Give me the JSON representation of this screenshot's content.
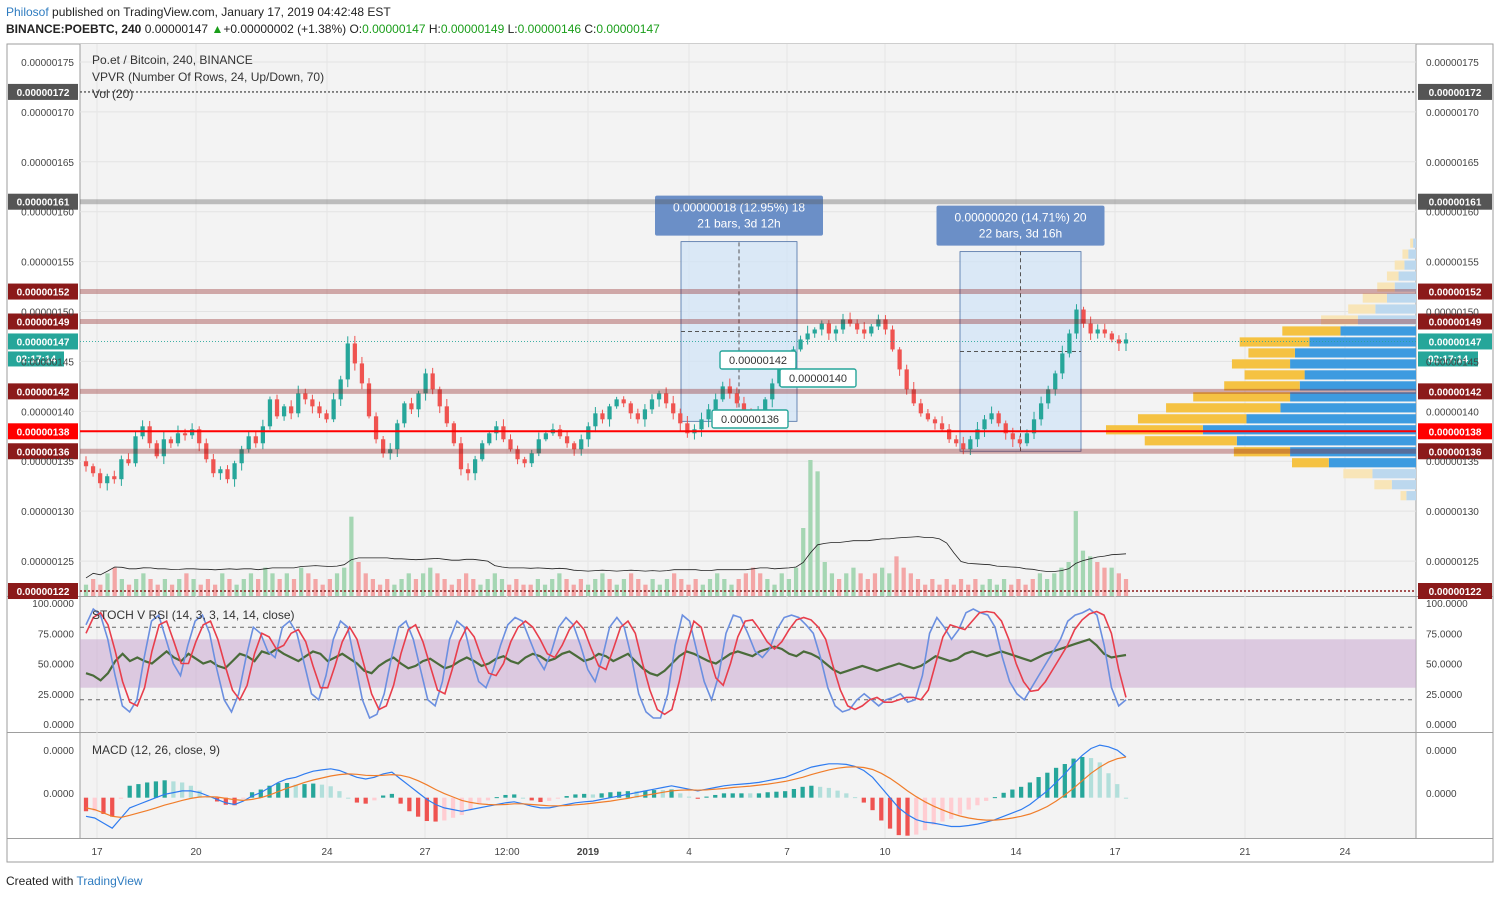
{
  "header": {
    "author": "Philosof",
    "published_text": "published on TradingView.com, January 17, 2019 04:42:48 EST",
    "symbol_line": "BINANCE:POEBTC, 240",
    "last_price": "0.00000147",
    "change_arrow": "▲",
    "change": "+0.00000002 (+1.38%)",
    "o_label": "O:",
    "o_value": "0.00000147",
    "h_label": "H:",
    "h_value": "0.00000149",
    "l_label": "L:",
    "l_value": "0.00000146",
    "c_label": "C:",
    "c_value": "0.00000147"
  },
  "footer": {
    "created_with": "Created with",
    "brand": "TradingView"
  },
  "chart_data": {
    "type": "candlestick",
    "legend": [
      "Po.et / Bitcoin, 240, BINANCE",
      "VPVR (Number Of Rows, 24, Up/Down, 70)",
      "Vol (20)"
    ],
    "y_ticks": [
      "0.00000175",
      "0.00000170",
      "0.00000165",
      "0.00000160",
      "0.00000155",
      "0.00000150",
      "0.00000145",
      "0.00000140",
      "0.00000135",
      "0.00000130",
      "0.00000125"
    ],
    "ylim": [
      1.215e-06,
      1.768e-06
    ],
    "x_ticks": [
      "17",
      "20",
      "24",
      "27",
      "12:00",
      "2019",
      "4",
      "7",
      "10",
      "14",
      "17",
      "21",
      "24"
    ],
    "horizontal_levels": [
      {
        "label": "0.00000172",
        "value": 1.72e-06,
        "color": "#555555",
        "style": "dotted"
      },
      {
        "label": "0.00000161",
        "value": 1.61e-06,
        "color": "#555555",
        "style": "band"
      },
      {
        "label": "0.00000152",
        "value": 1.52e-06,
        "color": "#8b1a1a",
        "style": "band"
      },
      {
        "label": "0.00000149",
        "value": 1.49e-06,
        "color": "#8b1a1a",
        "style": "band"
      },
      {
        "label": "0.00000142",
        "value": 1.42e-06,
        "color": "#8b1a1a",
        "style": "band"
      },
      {
        "label": "0.00000138",
        "value": 1.38e-06,
        "color": "#ff0000",
        "style": "solid"
      },
      {
        "label": "0.00000136",
        "value": 1.36e-06,
        "color": "#8b1a1a",
        "style": "band"
      },
      {
        "label": "0.00000122",
        "value": 1.22e-06,
        "color": "#8b1a1a",
        "style": "dotted"
      }
    ],
    "last_price_label": "0.00000147",
    "countdown": "02:17:14",
    "measurements": [
      {
        "line1": "0.00000018 (12.95%) 18",
        "line2": "21 bars, 3d 12h",
        "from": 1.39e-06,
        "to": 1.57e-06
      },
      {
        "line1": "0.00000020 (14.71%) 20",
        "line2": "22 bars, 3d 16h",
        "from": 1.36e-06,
        "to": 1.56e-06
      }
    ],
    "price_callouts": [
      "0.00000142",
      "0.00000140",
      "0.00000136"
    ],
    "closes": [
      1.345,
      1.338,
      1.328,
      1.335,
      1.332,
      1.352,
      1.348,
      1.375,
      1.385,
      1.368,
      1.355,
      1.372,
      1.368,
      1.378,
      1.376,
      1.382,
      1.368,
      1.352,
      1.338,
      1.342,
      1.332,
      1.348,
      1.362,
      1.375,
      1.368,
      1.385,
      1.412,
      1.395,
      1.405,
      1.398,
      1.418,
      1.412,
      1.405,
      1.398,
      1.392,
      1.412,
      1.432,
      1.468,
      1.448,
      1.428,
      1.395,
      1.372,
      1.358,
      1.362,
      1.388,
      1.408,
      1.402,
      1.418,
      1.438,
      1.422,
      1.405,
      1.388,
      1.368,
      1.342,
      1.338,
      1.352,
      1.368,
      1.378,
      1.385,
      1.372,
      1.362,
      1.352,
      1.348,
      1.358,
      1.372,
      1.378,
      1.382,
      1.375,
      1.368,
      1.362,
      1.372,
      1.385,
      1.398,
      1.392,
      1.405,
      1.412,
      1.408,
      1.398,
      1.392,
      1.402,
      1.412,
      1.418,
      1.408,
      1.398,
      1.388,
      1.378,
      1.382,
      1.392,
      1.402,
      1.412,
      1.425,
      1.418,
      1.408,
      1.398,
      1.392,
      1.398,
      1.412,
      1.428,
      1.442,
      1.452,
      1.462,
      1.472,
      1.478,
      1.482,
      1.488,
      1.478,
      1.482,
      1.492,
      1.488,
      1.482,
      1.478,
      1.485,
      1.492,
      1.482,
      1.462,
      1.442,
      1.422,
      1.408,
      1.398,
      1.392,
      1.388,
      1.382,
      1.372,
      1.368,
      1.362,
      1.372,
      1.382,
      1.392,
      1.398,
      1.388,
      1.378,
      1.372,
      1.368,
      1.378,
      1.392,
      1.408,
      1.422,
      1.438,
      1.458,
      1.478,
      1.502,
      1.488,
      1.478,
      1.482,
      1.478,
      1.472,
      1.468,
      1.472
    ],
    "volumes": [
      2,
      3,
      2,
      4,
      5,
      3,
      2,
      3,
      4,
      3,
      2,
      3,
      2,
      3,
      4,
      3,
      2,
      3,
      2,
      4,
      3,
      2,
      3,
      4,
      3,
      5,
      4,
      3,
      4,
      3,
      5,
      4,
      3,
      2,
      3,
      4,
      5,
      14,
      6,
      4,
      3,
      2,
      3,
      2,
      3,
      4,
      3,
      4,
      5,
      4,
      3,
      2,
      3,
      4,
      3,
      2,
      3,
      4,
      3,
      2,
      3,
      2,
      2,
      3,
      2,
      3,
      4,
      3,
      2,
      3,
      2,
      3,
      4,
      3,
      2,
      3,
      4,
      3,
      2,
      3,
      2,
      3,
      4,
      3,
      2,
      3,
      2,
      3,
      4,
      3,
      2,
      3,
      4,
      5,
      4,
      3,
      2,
      4,
      3,
      5,
      12,
      24,
      22,
      6,
      4,
      3,
      4,
      5,
      4,
      3,
      4,
      5,
      4,
      7,
      5,
      4,
      3,
      2,
      3,
      2,
      3,
      2,
      3,
      2,
      3,
      2,
      3,
      2,
      3,
      2,
      3,
      2,
      3,
      4,
      3,
      4,
      5,
      6,
      15,
      8,
      7,
      6,
      5,
      5,
      4,
      3
    ],
    "vpvr_rows": [
      {
        "price": 1.568e-06,
        "up": 3,
        "down": 3
      },
      {
        "price": 1.557e-06,
        "up": 8,
        "down": 6
      },
      {
        "price": 1.546e-06,
        "up": 12,
        "down": 10
      },
      {
        "price": 1.535e-06,
        "up": 18,
        "down": 12
      },
      {
        "price": 1.524e-06,
        "up": 22,
        "down": 18
      },
      {
        "price": 1.513e-06,
        "up": 30,
        "down": 25
      },
      {
        "price": 1.502e-06,
        "up": 42,
        "down": 28
      },
      {
        "price": 1.491e-06,
        "up": 60,
        "down": 38
      },
      {
        "price": 1.48e-06,
        "up": 78,
        "down": 60
      },
      {
        "price": 1.469e-06,
        "up": 110,
        "down": 72
      },
      {
        "price": 1.458e-06,
        "up": 125,
        "down": 48
      },
      {
        "price": 1.447e-06,
        "up": 130,
        "down": 60
      },
      {
        "price": 1.436e-06,
        "up": 115,
        "down": 62
      },
      {
        "price": 1.425e-06,
        "up": 120,
        "down": 78
      },
      {
        "price": 1.414e-06,
        "up": 130,
        "down": 100
      },
      {
        "price": 1.403e-06,
        "up": 140,
        "down": 118
      },
      {
        "price": 1.392e-06,
        "up": 175,
        "down": 112
      },
      {
        "price": 1.381e-06,
        "up": 220,
        "down": 100
      },
      {
        "price": 1.37e-06,
        "up": 185,
        "down": 95
      },
      {
        "price": 1.359e-06,
        "up": 130,
        "down": 58
      },
      {
        "price": 1.348e-06,
        "up": 90,
        "down": 38
      },
      {
        "price": 1.337e-06,
        "up": 45,
        "down": 30
      },
      {
        "price": 1.326e-06,
        "up": 25,
        "down": 18
      },
      {
        "price": 1.315e-06,
        "up": 10,
        "down": 6
      }
    ],
    "stoch": {
      "title": "STOCH V RSI (14, 3, 3, 14, 14, close)",
      "y_ticks": [
        "100.0000",
        "75.0000",
        "50.0000",
        "25.0000",
        "0.0000"
      ],
      "ylim": [
        0,
        100
      ],
      "band": [
        30,
        70
      ],
      "dashed_levels": [
        80,
        20
      ],
      "k": [
        82,
        95,
        90,
        70,
        40,
        15,
        10,
        20,
        55,
        85,
        90,
        70,
        50,
        40,
        65,
        85,
        90,
        75,
        45,
        20,
        10,
        25,
        55,
        80,
        75,
        60,
        55,
        80,
        85,
        75,
        50,
        25,
        20,
        40,
        70,
        85,
        80,
        50,
        20,
        5,
        8,
        25,
        55,
        80,
        85,
        70,
        45,
        20,
        15,
        35,
        70,
        85,
        80,
        55,
        35,
        30,
        45,
        65,
        82,
        88,
        85,
        70,
        55,
        45,
        60,
        80,
        88,
        82,
        65,
        45,
        35,
        55,
        80,
        88,
        80,
        55,
        25,
        10,
        5,
        5,
        25,
        65,
        90,
        85,
        60,
        35,
        20,
        40,
        75,
        90,
        88,
        75,
        60,
        55,
        62,
        78,
        88,
        90,
        88,
        82,
        75,
        55,
        30,
        15,
        10,
        12,
        20,
        25,
        20,
        15,
        20,
        22,
        25,
        18,
        20,
        40,
        75,
        88,
        80,
        70,
        78,
        92,
        95,
        92,
        90,
        80,
        55,
        35,
        25,
        20,
        30,
        40,
        50,
        60,
        70,
        85,
        90,
        92,
        95,
        90,
        65,
        30,
        15,
        20
      ],
      "d": [
        75,
        88,
        92,
        82,
        60,
        35,
        18,
        15,
        30,
        60,
        82,
        85,
        68,
        50,
        50,
        68,
        82,
        85,
        70,
        48,
        28,
        20,
        32,
        58,
        75,
        72,
        62,
        65,
        75,
        78,
        68,
        48,
        30,
        30,
        48,
        68,
        80,
        70,
        48,
        25,
        12,
        15,
        32,
        58,
        78,
        82,
        68,
        48,
        28,
        25,
        45,
        68,
        80,
        72,
        55,
        42,
        40,
        50,
        68,
        80,
        85,
        80,
        70,
        58,
        55,
        65,
        78,
        85,
        78,
        62,
        48,
        45,
        62,
        80,
        85,
        75,
        50,
        28,
        12,
        8,
        12,
        35,
        65,
        85,
        80,
        58,
        38,
        32,
        50,
        72,
        85,
        86,
        78,
        68,
        62,
        68,
        78,
        86,
        88,
        86,
        80,
        70,
        48,
        28,
        15,
        12,
        15,
        20,
        22,
        18,
        18,
        20,
        22,
        22,
        20,
        28,
        50,
        72,
        82,
        80,
        78,
        85,
        92,
        93,
        92,
        85,
        70,
        50,
        35,
        27,
        28,
        35,
        45,
        55,
        65,
        78,
        86,
        91,
        93,
        90,
        75,
        45,
        22
      ],
      "rsi": [
        42,
        40,
        36,
        42,
        52,
        58,
        52,
        55,
        52,
        50,
        55,
        60,
        55,
        52,
        58,
        54,
        50,
        52,
        48,
        46,
        52,
        58,
        56,
        52,
        60,
        58,
        62,
        58,
        55,
        52,
        56,
        60,
        58,
        52,
        55,
        58,
        54,
        50,
        44,
        42,
        48,
        52,
        55,
        50,
        46,
        48,
        52,
        54,
        50,
        46,
        48,
        52,
        55,
        52,
        48,
        50,
        54,
        56,
        52,
        50,
        55,
        58,
        56,
        52,
        54,
        58,
        60,
        56,
        52,
        54,
        58,
        56,
        52,
        55,
        58,
        52,
        46,
        42,
        40,
        44,
        50,
        56,
        60,
        58,
        55,
        52,
        50,
        54,
        58,
        60,
        58,
        56,
        60,
        62,
        64,
        62,
        58,
        56,
        60,
        58,
        55,
        50,
        45,
        42,
        44,
        46,
        48,
        46,
        44,
        46,
        48,
        50,
        48,
        46,
        48,
        52,
        56,
        54,
        52,
        54,
        58,
        60,
        58,
        56,
        58,
        60,
        58,
        56,
        54,
        52,
        55,
        58,
        60,
        62,
        64,
        66,
        68,
        70,
        65,
        58,
        55,
        56,
        57
      ]
    },
    "macd": {
      "title": "MACD (12, 26, close, 9)",
      "y_ticks": [
        "0.0000",
        "0.0000"
      ],
      "macd_line": [
        -0.55,
        -0.6,
        -0.75,
        -0.9,
        -0.6,
        -0.3,
        -0.2,
        -0.1,
        0.0,
        0.1,
        0.15,
        0.2,
        0.2,
        0.15,
        0.05,
        -0.05,
        -0.15,
        -0.2,
        -0.1,
        0.05,
        0.15,
        0.3,
        0.45,
        0.55,
        0.6,
        0.7,
        0.78,
        0.82,
        0.85,
        0.8,
        0.7,
        0.6,
        0.55,
        0.6,
        0.7,
        0.75,
        0.55,
        0.35,
        0.15,
        -0.05,
        -0.2,
        -0.3,
        -0.35,
        -0.4,
        -0.35,
        -0.3,
        -0.25,
        -0.2,
        -0.15,
        -0.12,
        -0.18,
        -0.25,
        -0.3,
        -0.3,
        -0.25,
        -0.2,
        -0.15,
        -0.12,
        -0.1,
        -0.05,
        0.0,
        0.05,
        0.1,
        0.15,
        0.2,
        0.25,
        0.3,
        0.35,
        0.3,
        0.25,
        0.2,
        0.25,
        0.3,
        0.35,
        0.38,
        0.4,
        0.42,
        0.45,
        0.5,
        0.55,
        0.6,
        0.7,
        0.8,
        0.9,
        0.95,
        1.0,
        1.0,
        0.98,
        0.92,
        0.8,
        0.6,
        0.3,
        0.0,
        -0.3,
        -0.5,
        -0.65,
        -0.72,
        -0.75,
        -0.8,
        -0.85,
        -0.85,
        -0.82,
        -0.78,
        -0.72,
        -0.65,
        -0.55,
        -0.45,
        -0.35,
        -0.2,
        0.0,
        0.2,
        0.45,
        0.7,
        1.0,
        1.25,
        1.45,
        1.55,
        1.5,
        1.4,
        1.2
      ],
      "signal_line": [
        -0.3,
        -0.35,
        -0.45,
        -0.55,
        -0.58,
        -0.52,
        -0.45,
        -0.38,
        -0.3,
        -0.22,
        -0.15,
        -0.08,
        -0.02,
        0.02,
        0.03,
        0.02,
        -0.02,
        -0.06,
        -0.08,
        -0.05,
        0.0,
        0.08,
        0.18,
        0.28,
        0.36,
        0.45,
        0.52,
        0.58,
        0.64,
        0.68,
        0.7,
        0.69,
        0.66,
        0.65,
        0.66,
        0.68,
        0.66,
        0.6,
        0.5,
        0.38,
        0.24,
        0.12,
        0.02,
        -0.08,
        -0.14,
        -0.18,
        -0.2,
        -0.21,
        -0.2,
        -0.18,
        -0.18,
        -0.2,
        -0.22,
        -0.24,
        -0.24,
        -0.23,
        -0.21,
        -0.19,
        -0.16,
        -0.13,
        -0.1,
        -0.06,
        -0.02,
        0.03,
        0.07,
        0.11,
        0.16,
        0.2,
        0.22,
        0.23,
        0.22,
        0.23,
        0.25,
        0.27,
        0.3,
        0.32,
        0.34,
        0.37,
        0.4,
        0.44,
        0.48,
        0.54,
        0.6,
        0.68,
        0.75,
        0.82,
        0.87,
        0.9,
        0.91,
        0.89,
        0.83,
        0.72,
        0.57,
        0.39,
        0.2,
        0.03,
        -0.12,
        -0.25,
        -0.36,
        -0.46,
        -0.54,
        -0.6,
        -0.64,
        -0.66,
        -0.66,
        -0.64,
        -0.6,
        -0.55,
        -0.48,
        -0.38,
        -0.26,
        -0.1,
        0.08,
        0.28,
        0.5,
        0.72,
        0.9,
        1.05,
        1.15,
        1.2
      ],
      "ylim": [
        -1.1,
        1.7
      ]
    }
  }
}
